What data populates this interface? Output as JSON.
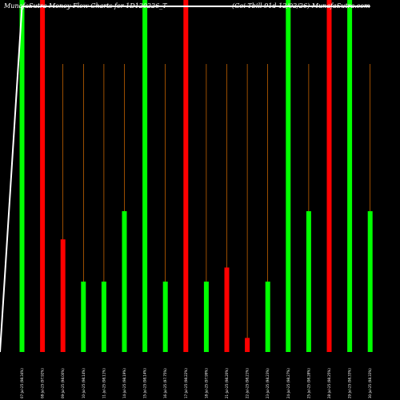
{
  "chart_data": {
    "type": "bar",
    "title_left": "MunafaSutra  Money Flow  Charts for 1D120226_T",
    "title_right": "(Goi  Tbill  91d-12/02/26) MunafaSutra.com",
    "categories": [
      "07-Jul-25 (98.34%)",
      "08-Jul-25 (97.92%)",
      "09-Jul-25 (98.00%)",
      "10-Jul-25 (98.14%)",
      "11-Jul-25 (98.11%)",
      "14-Jul-25 (98.19%)",
      "15-Jul-25 (98.14%)",
      "16-Jul-25 (97.75%)",
      "17-Jul-25 (98.22%)",
      "18-Jul-25 (97.99%)",
      "21-Jul-25 (98.20%)",
      "22-Jul-25 (98.21%)",
      "23-Jul-25 (98.23%)",
      "24-Jul-25 (98.27%)",
      "25-Jul-25 (98.28%)",
      "28-Jul-25 (98.25%)",
      "29-Jul-25 (98.33%)",
      "30-Jul-25 (98.33%)"
    ],
    "volume_bars": {
      "values": [
        100,
        100,
        32,
        20,
        20,
        40,
        100,
        20,
        100,
        20,
        24,
        4,
        20,
        100,
        40,
        100,
        100,
        40
      ],
      "colors": [
        "green",
        "red",
        "red",
        "green",
        "green",
        "green",
        "green",
        "green",
        "red",
        "green",
        "red",
        "red",
        "green",
        "green",
        "green",
        "red",
        "green",
        "green"
      ],
      "ylim": [
        0,
        100
      ]
    },
    "price_line": {
      "values": [
        0,
        98.17,
        98.18,
        98.19,
        98.19,
        98.21,
        98.2,
        98.2,
        98.2,
        98.2,
        98.2,
        98.2,
        98.2,
        98.2,
        98.21,
        98.21,
        98.21,
        98.21,
        98.21
      ],
      "ylim": [
        0,
        100
      ]
    },
    "grid": false,
    "colors": {
      "background": "#000000",
      "up": "#00ff00",
      "down": "#ff0000",
      "line": "#ffffff",
      "thin_line": "#ff8000"
    }
  }
}
